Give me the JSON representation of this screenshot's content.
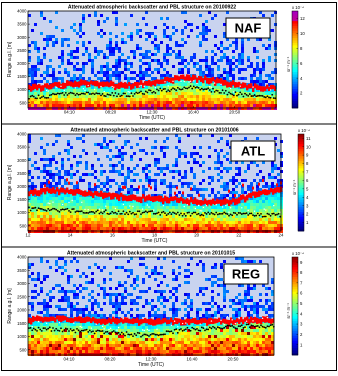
{
  "chart_data": [
    {
      "type": "heatmap",
      "title": "Attenuated atmospheric backscatter and PBL structure on 20100922",
      "label": "NAF",
      "xlabel": "Time (UTC)",
      "ylabel": "Range a.g.l. [m]",
      "x_ticks": [
        "04:10",
        "08:20",
        "12:30",
        "16:40",
        "20:50"
      ],
      "y_ticks": [
        500,
        1000,
        1500,
        2000,
        2500,
        3000,
        3500,
        4000
      ],
      "ylim": [
        300,
        4000
      ],
      "colorbar": {
        "ticks": [
          2,
          4,
          6,
          8,
          10,
          12
        ],
        "max": 13,
        "exponent": "x 10⁻⁴",
        "label": "sr⁻¹ m⁻¹"
      },
      "red_layer_m": [
        [
          0.0,
          1080
        ],
        [
          0.08,
          1120
        ],
        [
          0.16,
          1230
        ],
        [
          0.24,
          1260
        ],
        [
          0.32,
          1200
        ],
        [
          0.4,
          1150
        ],
        [
          0.48,
          1250
        ],
        [
          0.56,
          1380
        ],
        [
          0.64,
          1450
        ],
        [
          0.72,
          1380
        ],
        [
          0.8,
          1250
        ],
        [
          0.88,
          1120
        ],
        [
          0.96,
          1060
        ],
        [
          1.0,
          1040
        ]
      ],
      "black_layer_m": [
        [
          0.0,
          720
        ],
        [
          0.08,
          760
        ],
        [
          0.16,
          820
        ],
        [
          0.24,
          860
        ],
        [
          0.32,
          820
        ],
        [
          0.4,
          790
        ],
        [
          0.48,
          900
        ],
        [
          0.56,
          1000
        ],
        [
          0.64,
          1080
        ],
        [
          0.72,
          1000
        ],
        [
          0.8,
          880
        ],
        [
          0.88,
          800
        ],
        [
          0.96,
          760
        ],
        [
          1.0,
          740
        ]
      ]
    },
    {
      "type": "heatmap",
      "title": "Attenuated atmospheric backscatter and PBL structure on 20101006",
      "label": "ATL",
      "xlabel": "Time (UTC)",
      "ylabel": "Range a.g.l. [m]",
      "x_ticks": [
        "12",
        "14",
        "16",
        "18",
        "20",
        "22",
        "24"
      ],
      "y_ticks": [
        500,
        1000,
        1500,
        2000,
        2500,
        3000,
        3500,
        4000
      ],
      "ylim": [
        300,
        4000
      ],
      "colorbar": {
        "ticks": [
          1,
          2,
          3,
          4,
          5,
          6,
          7,
          8,
          9,
          10,
          11
        ],
        "max": 11.5,
        "exponent": "x 10⁻⁴",
        "label": "sr⁻¹ m⁻¹"
      },
      "red_layer_m": [
        [
          0.0,
          1750
        ],
        [
          0.08,
          1850
        ],
        [
          0.16,
          1800
        ],
        [
          0.24,
          1720
        ],
        [
          0.32,
          1660
        ],
        [
          0.4,
          1580
        ],
        [
          0.48,
          1550
        ],
        [
          0.56,
          1500
        ],
        [
          0.64,
          1450
        ],
        [
          0.72,
          1400
        ],
        [
          0.8,
          1420
        ],
        [
          0.88,
          1650
        ],
        [
          0.96,
          1850
        ],
        [
          1.0,
          1900
        ]
      ],
      "black_layer_m": [
        [
          0.0,
          1150
        ],
        [
          0.08,
          1120
        ],
        [
          0.16,
          1080
        ],
        [
          0.24,
          1050
        ],
        [
          0.32,
          1020
        ],
        [
          0.4,
          1000
        ],
        [
          0.48,
          990
        ],
        [
          0.56,
          970
        ],
        [
          0.64,
          950
        ],
        [
          0.72,
          940
        ],
        [
          0.8,
          930
        ],
        [
          0.88,
          920
        ],
        [
          0.96,
          900
        ],
        [
          1.0,
          900
        ]
      ]
    },
    {
      "type": "heatmap",
      "title": "Attenuated atmospheric backscatter and PBL structure on 20101015",
      "label": "REG",
      "xlabel": "Time (UTC)",
      "ylabel": "Range a.g.l. [m]",
      "x_ticks": [
        "04:10",
        "08:20",
        "12:30",
        "16:40",
        "20:50"
      ],
      "y_ticks": [
        500,
        1000,
        1500,
        2000,
        2500,
        3000,
        3500,
        4000
      ],
      "ylim": [
        300,
        4000
      ],
      "colorbar": {
        "ticks": [
          1,
          2,
          3,
          4,
          5,
          6,
          7,
          8,
          9
        ],
        "max": 9.5,
        "exponent": "x 10⁻⁴",
        "label": "sr⁻¹ m⁻¹"
      },
      "red_layer_m": [
        [
          0.0,
          1650
        ],
        [
          0.08,
          1660
        ],
        [
          0.16,
          1640
        ],
        [
          0.24,
          1620
        ],
        [
          0.32,
          1600
        ],
        [
          0.4,
          1580
        ],
        [
          0.48,
          1560
        ],
        [
          0.56,
          1560
        ],
        [
          0.64,
          1550
        ],
        [
          0.72,
          1560
        ],
        [
          0.8,
          1580
        ],
        [
          0.88,
          1600
        ],
        [
          0.96,
          1620
        ],
        [
          1.0,
          1620
        ]
      ],
      "black_layer_m": [
        [
          0.0,
          1250
        ],
        [
          0.08,
          1280
        ],
        [
          0.16,
          1240
        ],
        [
          0.24,
          1200
        ],
        [
          0.32,
          1150
        ],
        [
          0.4,
          1100
        ],
        [
          0.48,
          1050
        ],
        [
          0.56,
          1150
        ],
        [
          0.64,
          1250
        ],
        [
          0.72,
          1300
        ],
        [
          0.8,
          1350
        ],
        [
          0.88,
          1380
        ],
        [
          0.96,
          1400
        ],
        [
          1.0,
          1400
        ]
      ]
    }
  ]
}
